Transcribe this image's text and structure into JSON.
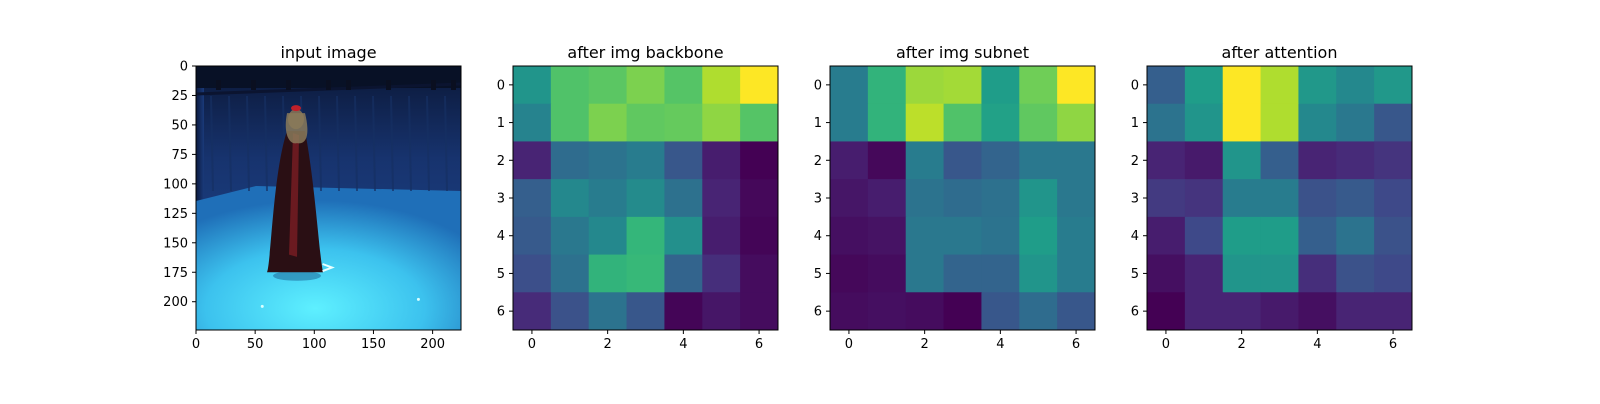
{
  "chart_data": [
    {
      "type": "image",
      "title": "input image",
      "xlim": [
        0,
        224
      ],
      "ylim": [
        224,
        0
      ],
      "xticks": [
        0,
        50,
        100,
        150,
        200
      ],
      "yticks": [
        0,
        25,
        50,
        75,
        100,
        125,
        150,
        175,
        200
      ]
    },
    {
      "type": "heatmap",
      "title": "after img backbone",
      "xticks": [
        0,
        2,
        4,
        6
      ],
      "yticks": [
        0,
        1,
        2,
        3,
        4,
        5,
        6
      ],
      "colormap": "viridis",
      "values": [
        [
          0.52,
          0.72,
          0.74,
          0.8,
          0.73,
          0.88,
          1.0
        ],
        [
          0.45,
          0.72,
          0.8,
          0.75,
          0.76,
          0.83,
          0.73
        ],
        [
          0.1,
          0.35,
          0.38,
          0.42,
          0.27,
          0.08,
          0.0
        ],
        [
          0.3,
          0.47,
          0.42,
          0.48,
          0.37,
          0.1,
          0.02
        ],
        [
          0.28,
          0.4,
          0.47,
          0.66,
          0.5,
          0.08,
          0.01
        ],
        [
          0.24,
          0.37,
          0.65,
          0.67,
          0.32,
          0.13,
          0.03
        ],
        [
          0.12,
          0.25,
          0.38,
          0.27,
          0.01,
          0.06,
          0.03
        ]
      ]
    },
    {
      "type": "heatmap",
      "title": "after img subnet",
      "xticks": [
        0,
        2,
        4,
        6
      ],
      "yticks": [
        0,
        1,
        2,
        3,
        4,
        5,
        6
      ],
      "colormap": "viridis",
      "values": [
        [
          0.42,
          0.65,
          0.85,
          0.86,
          0.55,
          0.78,
          1.0
        ],
        [
          0.42,
          0.65,
          0.9,
          0.72,
          0.57,
          0.75,
          0.83
        ],
        [
          0.08,
          0.02,
          0.42,
          0.27,
          0.32,
          0.4,
          0.4
        ],
        [
          0.06,
          0.08,
          0.38,
          0.35,
          0.37,
          0.52,
          0.4
        ],
        [
          0.04,
          0.05,
          0.4,
          0.4,
          0.38,
          0.55,
          0.42
        ],
        [
          0.02,
          0.03,
          0.4,
          0.32,
          0.32,
          0.52,
          0.42
        ],
        [
          0.03,
          0.04,
          0.03,
          0.0,
          0.27,
          0.35,
          0.27
        ]
      ]
    },
    {
      "type": "heatmap",
      "title": "after attention",
      "xticks": [
        0,
        2,
        4,
        6
      ],
      "yticks": [
        0,
        1,
        2,
        3,
        4,
        5,
        6
      ],
      "colormap": "viridis",
      "values": [
        [
          0.3,
          0.55,
          1.0,
          0.88,
          0.53,
          0.47,
          0.53
        ],
        [
          0.38,
          0.52,
          1.0,
          0.88,
          0.47,
          0.4,
          0.27
        ],
        [
          0.1,
          0.07,
          0.52,
          0.3,
          0.1,
          0.12,
          0.15
        ],
        [
          0.17,
          0.15,
          0.42,
          0.42,
          0.25,
          0.28,
          0.22
        ],
        [
          0.08,
          0.22,
          0.55,
          0.55,
          0.3,
          0.38,
          0.25
        ],
        [
          0.04,
          0.1,
          0.52,
          0.52,
          0.13,
          0.25,
          0.22
        ],
        [
          0.0,
          0.1,
          0.1,
          0.07,
          0.04,
          0.1,
          0.1
        ]
      ]
    }
  ]
}
